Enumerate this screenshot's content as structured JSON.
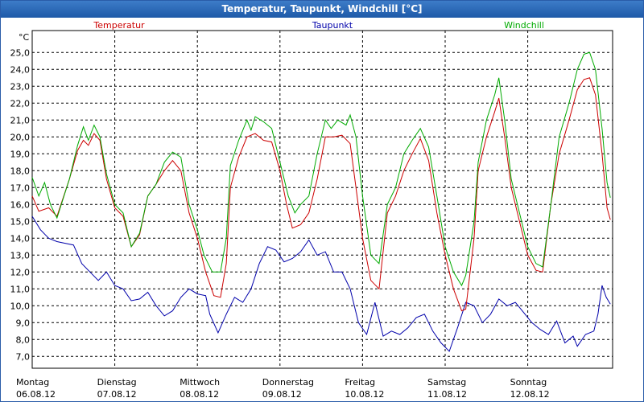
{
  "window": {
    "title": "Temperatur, Taupunkt, Windchill [°C]"
  },
  "chart_data": {
    "type": "line",
    "title": "Temperatur, Taupunkt, Windchill [°C]",
    "ylabel": "°C",
    "ylim": [
      6.3,
      26.3
    ],
    "xlim": [
      0,
      7.0
    ],
    "yticks": [
      7.0,
      8.0,
      9.0,
      10.0,
      11.0,
      12.0,
      13.0,
      14.0,
      15.0,
      16.0,
      17.0,
      18.0,
      19.0,
      20.0,
      21.0,
      22.0,
      23.0,
      24.0,
      25.0
    ],
    "ytick_labels": [
      "7,0",
      "8,0",
      "9,0",
      "10,0",
      "11,0",
      "12,0",
      "13,0",
      "14,0",
      "15,0",
      "16,0",
      "17,0",
      "18,0",
      "19,0",
      "20,0",
      "21,0",
      "22,0",
      "23,0",
      "24,0",
      "25,0"
    ],
    "days": [
      {
        "weekday": "Montag",
        "date": "06.08.12"
      },
      {
        "weekday": "Dienstag",
        "date": "07.08.12"
      },
      {
        "weekday": "Mittwoch",
        "date": "08.08.12"
      },
      {
        "weekday": "Donnerstag",
        "date": "09.08.12"
      },
      {
        "weekday": "Freitag",
        "date": "10.08.12"
      },
      {
        "weekday": "Samstag",
        "date": "11.08.12"
      },
      {
        "weekday": "Sonntag",
        "date": "12.08.12"
      }
    ],
    "grid": true,
    "series": [
      {
        "name": "Temperatur",
        "color": "#cc0000",
        "points": [
          [
            0,
            16.5
          ],
          [
            0.08,
            15.6
          ],
          [
            0.2,
            15.8
          ],
          [
            0.3,
            15.3
          ],
          [
            0.45,
            17.5
          ],
          [
            0.55,
            19.2
          ],
          [
            0.62,
            19.8
          ],
          [
            0.68,
            19.5
          ],
          [
            0.75,
            20.2
          ],
          [
            0.82,
            19.8
          ],
          [
            0.9,
            17.5
          ],
          [
            1.0,
            15.8
          ],
          [
            1.1,
            15.3
          ],
          [
            1.2,
            13.5
          ],
          [
            1.3,
            14.2
          ],
          [
            1.4,
            16.5
          ],
          [
            1.5,
            17.2
          ],
          [
            1.6,
            18.0
          ],
          [
            1.7,
            18.6
          ],
          [
            1.8,
            18.0
          ],
          [
            1.9,
            15.5
          ],
          [
            2.0,
            14.0
          ],
          [
            2.1,
            12.0
          ],
          [
            2.2,
            10.6
          ],
          [
            2.28,
            10.5
          ],
          [
            2.35,
            12.5
          ],
          [
            2.4,
            17.0
          ],
          [
            2.5,
            18.8
          ],
          [
            2.6,
            20.0
          ],
          [
            2.7,
            20.2
          ],
          [
            2.8,
            19.8
          ],
          [
            2.9,
            19.7
          ],
          [
            3.0,
            18.0
          ],
          [
            3.08,
            16.0
          ],
          [
            3.15,
            14.6
          ],
          [
            3.25,
            14.8
          ],
          [
            3.35,
            15.5
          ],
          [
            3.45,
            17.5
          ],
          [
            3.55,
            20.0
          ],
          [
            3.65,
            20.0
          ],
          [
            3.75,
            20.1
          ],
          [
            3.85,
            19.6
          ],
          [
            3.92,
            17.0
          ],
          [
            4.0,
            14.0
          ],
          [
            4.1,
            11.5
          ],
          [
            4.2,
            11.0
          ],
          [
            4.3,
            15.5
          ],
          [
            4.4,
            16.5
          ],
          [
            4.5,
            18.0
          ],
          [
            4.6,
            19.0
          ],
          [
            4.7,
            19.9
          ],
          [
            4.8,
            18.6
          ],
          [
            4.9,
            15.5
          ],
          [
            5.0,
            13.0
          ],
          [
            5.1,
            11.0
          ],
          [
            5.2,
            9.7
          ],
          [
            5.25,
            9.8
          ],
          [
            5.35,
            14.0
          ],
          [
            5.4,
            18.0
          ],
          [
            5.5,
            20.0
          ],
          [
            5.6,
            21.5
          ],
          [
            5.65,
            22.3
          ],
          [
            5.72,
            20.0
          ],
          [
            5.8,
            17.0
          ],
          [
            5.9,
            15.0
          ],
          [
            6.0,
            13.0
          ],
          [
            6.1,
            12.1
          ],
          [
            6.18,
            12.0
          ],
          [
            6.28,
            16.0
          ],
          [
            6.38,
            19.0
          ],
          [
            6.5,
            21.0
          ],
          [
            6.6,
            22.8
          ],
          [
            6.68,
            23.4
          ],
          [
            6.75,
            23.5
          ],
          [
            6.82,
            22.5
          ],
          [
            6.9,
            19.0
          ],
          [
            6.96,
            15.8
          ],
          [
            7.0,
            15.1
          ]
        ]
      },
      {
        "name": "Taupunkt",
        "color": "#0000aa",
        "points": [
          [
            0,
            15.3
          ],
          [
            0.1,
            14.5
          ],
          [
            0.2,
            14.0
          ],
          [
            0.3,
            13.8
          ],
          [
            0.4,
            13.7
          ],
          [
            0.5,
            13.6
          ],
          [
            0.6,
            12.5
          ],
          [
            0.7,
            12.0
          ],
          [
            0.8,
            11.5
          ],
          [
            0.9,
            12.0
          ],
          [
            1.0,
            11.2
          ],
          [
            1.1,
            11.0
          ],
          [
            1.2,
            10.3
          ],
          [
            1.3,
            10.4
          ],
          [
            1.4,
            10.8
          ],
          [
            1.5,
            10.0
          ],
          [
            1.6,
            9.4
          ],
          [
            1.7,
            9.7
          ],
          [
            1.8,
            10.5
          ],
          [
            1.9,
            11.0
          ],
          [
            2.0,
            10.7
          ],
          [
            2.1,
            10.6
          ],
          [
            2.15,
            9.5
          ],
          [
            2.25,
            8.4
          ],
          [
            2.35,
            9.5
          ],
          [
            2.45,
            10.5
          ],
          [
            2.55,
            10.2
          ],
          [
            2.65,
            11.0
          ],
          [
            2.75,
            12.5
          ],
          [
            2.85,
            13.5
          ],
          [
            2.95,
            13.3
          ],
          [
            3.05,
            12.6
          ],
          [
            3.15,
            12.8
          ],
          [
            3.25,
            13.2
          ],
          [
            3.35,
            13.9
          ],
          [
            3.45,
            13.0
          ],
          [
            3.55,
            13.2
          ],
          [
            3.65,
            12.0
          ],
          [
            3.75,
            12.0
          ],
          [
            3.85,
            11.0
          ],
          [
            3.95,
            9.0
          ],
          [
            4.05,
            8.3
          ],
          [
            4.15,
            10.2
          ],
          [
            4.25,
            8.2
          ],
          [
            4.35,
            8.5
          ],
          [
            4.45,
            8.3
          ],
          [
            4.55,
            8.7
          ],
          [
            4.65,
            9.3
          ],
          [
            4.75,
            9.5
          ],
          [
            4.85,
            8.5
          ],
          [
            4.95,
            7.8
          ],
          [
            5.05,
            7.3
          ],
          [
            5.15,
            8.7
          ],
          [
            5.25,
            10.2
          ],
          [
            5.35,
            10.0
          ],
          [
            5.45,
            9.0
          ],
          [
            5.55,
            9.5
          ],
          [
            5.65,
            10.4
          ],
          [
            5.75,
            10.0
          ],
          [
            5.85,
            10.2
          ],
          [
            5.95,
            9.6
          ],
          [
            6.05,
            9.0
          ],
          [
            6.15,
            8.6
          ],
          [
            6.25,
            8.3
          ],
          [
            6.35,
            9.1
          ],
          [
            6.45,
            7.8
          ],
          [
            6.55,
            8.2
          ],
          [
            6.6,
            7.6
          ],
          [
            6.7,
            8.3
          ],
          [
            6.8,
            8.5
          ],
          [
            6.85,
            9.5
          ],
          [
            6.9,
            11.2
          ],
          [
            6.95,
            10.5
          ],
          [
            7.0,
            10.1
          ]
        ]
      },
      {
        "name": "Windchill",
        "color": "#00aa00",
        "points": [
          [
            0,
            17.6
          ],
          [
            0.08,
            16.5
          ],
          [
            0.15,
            17.3
          ],
          [
            0.22,
            16.0
          ],
          [
            0.3,
            15.2
          ],
          [
            0.45,
            17.5
          ],
          [
            0.55,
            19.5
          ],
          [
            0.62,
            20.6
          ],
          [
            0.68,
            19.8
          ],
          [
            0.75,
            20.7
          ],
          [
            0.82,
            20.0
          ],
          [
            0.9,
            17.8
          ],
          [
            1.0,
            16.0
          ],
          [
            1.1,
            15.5
          ],
          [
            1.2,
            13.5
          ],
          [
            1.3,
            14.3
          ],
          [
            1.4,
            16.5
          ],
          [
            1.5,
            17.2
          ],
          [
            1.6,
            18.5
          ],
          [
            1.7,
            19.1
          ],
          [
            1.8,
            18.8
          ],
          [
            1.9,
            16.0
          ],
          [
            2.0,
            14.5
          ],
          [
            2.08,
            13.0
          ],
          [
            2.18,
            12.0
          ],
          [
            2.28,
            12.0
          ],
          [
            2.35,
            14.0
          ],
          [
            2.4,
            18.3
          ],
          [
            2.5,
            19.8
          ],
          [
            2.6,
            21.0
          ],
          [
            2.65,
            20.4
          ],
          [
            2.7,
            21.2
          ],
          [
            2.8,
            20.9
          ],
          [
            2.9,
            20.5
          ],
          [
            3.0,
            18.5
          ],
          [
            3.1,
            16.5
          ],
          [
            3.18,
            15.5
          ],
          [
            3.25,
            16.0
          ],
          [
            3.35,
            16.5
          ],
          [
            3.45,
            19.0
          ],
          [
            3.55,
            21.0
          ],
          [
            3.62,
            20.5
          ],
          [
            3.7,
            21.0
          ],
          [
            3.8,
            20.7
          ],
          [
            3.85,
            21.3
          ],
          [
            3.92,
            20.0
          ],
          [
            4.0,
            16.5
          ],
          [
            4.1,
            13.0
          ],
          [
            4.2,
            12.5
          ],
          [
            4.3,
            16.0
          ],
          [
            4.4,
            17.0
          ],
          [
            4.5,
            19.0
          ],
          [
            4.6,
            19.8
          ],
          [
            4.7,
            20.5
          ],
          [
            4.8,
            19.4
          ],
          [
            4.9,
            16.5
          ],
          [
            5.0,
            13.5
          ],
          [
            5.1,
            12.0
          ],
          [
            5.2,
            11.2
          ],
          [
            5.25,
            11.8
          ],
          [
            5.35,
            15.0
          ],
          [
            5.4,
            18.5
          ],
          [
            5.5,
            21.0
          ],
          [
            5.6,
            22.5
          ],
          [
            5.65,
            23.5
          ],
          [
            5.72,
            21.0
          ],
          [
            5.8,
            17.5
          ],
          [
            5.9,
            15.5
          ],
          [
            6.0,
            13.5
          ],
          [
            6.1,
            12.5
          ],
          [
            6.18,
            12.3
          ],
          [
            6.28,
            16.0
          ],
          [
            6.38,
            20.0
          ],
          [
            6.5,
            22.0
          ],
          [
            6.6,
            24.0
          ],
          [
            6.68,
            24.9
          ],
          [
            6.75,
            25.0
          ],
          [
            6.82,
            24.0
          ],
          [
            6.9,
            20.5
          ],
          [
            6.96,
            17.3
          ],
          [
            7.0,
            16.4
          ]
        ]
      }
    ]
  }
}
